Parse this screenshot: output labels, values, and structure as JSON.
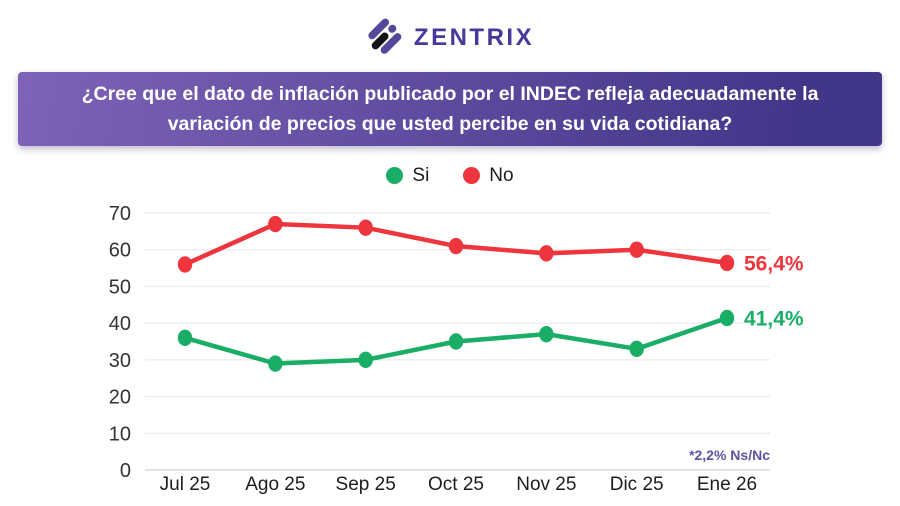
{
  "brand": {
    "name": "ZENTRIX",
    "color": "#46399a",
    "icon": "diagonal-stripes-logo",
    "icon_purple": "#55489b",
    "icon_black": "#141418"
  },
  "question": {
    "line1": "¿Cree que el dato de inflación publicado por el INDEC refleja adecuadamente la",
    "line2": "variación de precios que usted percibe en su vida cotidiana?",
    "bg_gradient": [
      "#7e63b8",
      "#423688"
    ],
    "text_color": "#ffffff"
  },
  "chart_data": {
    "type": "line",
    "title": "",
    "xlabel": "",
    "ylabel": "",
    "categories": [
      "Jul 25",
      "Ago 25",
      "Sep 25",
      "Oct 25",
      "Nov 25",
      "Dic 25",
      "Ene 26"
    ],
    "series": [
      {
        "name": "Si",
        "color": "#19ad66",
        "values": [
          36,
          29,
          30,
          35,
          37,
          33,
          41.4
        ],
        "end_label": "41,4%"
      },
      {
        "name": "No",
        "color": "#ee353d",
        "values": [
          56,
          67,
          66,
          61,
          59,
          60,
          56.4
        ],
        "end_label": "56,4%"
      }
    ],
    "ylim": [
      0,
      70
    ],
    "yticks": [
      0,
      10,
      20,
      30,
      40,
      50,
      60,
      70
    ],
    "grid": true,
    "legend_position": "top",
    "annotation": "*2,2% Ns/Nc",
    "annotation_color": "#5b53a5"
  }
}
